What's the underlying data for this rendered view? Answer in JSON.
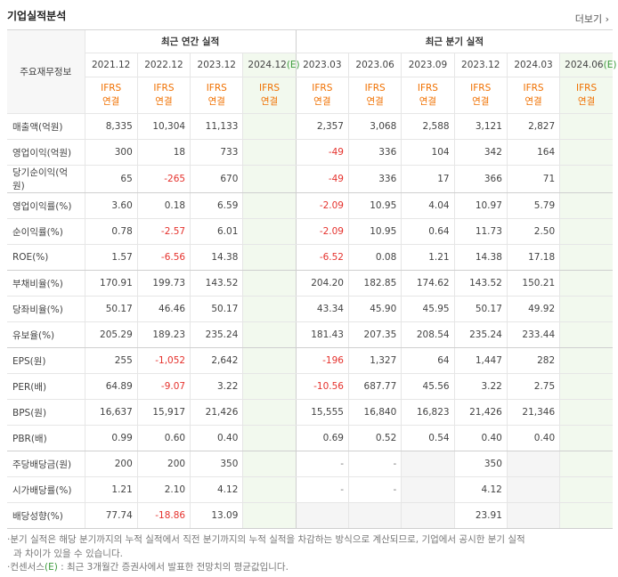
{
  "header": {
    "title": "기업실적분석",
    "more": "더보기"
  },
  "table": {
    "row_header": "주요재무정보",
    "groups": [
      {
        "title": "최근 연간 실적",
        "columns": [
          {
            "period": "2021.12",
            "standard": "IFRS",
            "scope": "연결"
          },
          {
            "period": "2022.12",
            "standard": "IFRS",
            "scope": "연결"
          },
          {
            "period": "2023.12",
            "standard": "IFRS",
            "scope": "연결"
          },
          {
            "period": "2024.12",
            "estimate": "(E)",
            "standard": "IFRS",
            "scope": "연결"
          }
        ]
      },
      {
        "title": "최근 분기 실적",
        "columns": [
          {
            "period": "2023.03",
            "standard": "IFRS",
            "scope": "연결"
          },
          {
            "period": "2023.06",
            "standard": "IFRS",
            "scope": "연결"
          },
          {
            "period": "2023.09",
            "standard": "IFRS",
            "scope": "연결"
          },
          {
            "period": "2023.12",
            "standard": "IFRS",
            "scope": "연결"
          },
          {
            "period": "2024.03",
            "standard": "IFRS",
            "scope": "연결"
          },
          {
            "period": "2024.06",
            "estimate": "(E)",
            "standard": "IFRS",
            "scope": "연결"
          }
        ]
      }
    ],
    "row_groups": [
      [
        {
          "label": "매출액(억원)",
          "values": [
            "8,335",
            "10,304",
            "11,133",
            null,
            "2,357",
            "3,068",
            "2,588",
            "3,121",
            "2,827",
            null
          ]
        },
        {
          "label": "영업이익(억원)",
          "values": [
            "300",
            "18",
            "733",
            null,
            "-49",
            "336",
            "104",
            "342",
            "164",
            null
          ]
        },
        {
          "label": "당기순이익(억원)",
          "values": [
            "65",
            "-265",
            "670",
            null,
            "-49",
            "336",
            "17",
            "366",
            "71",
            null
          ]
        }
      ],
      [
        {
          "label": "영업이익률(%)",
          "values": [
            "3.60",
            "0.18",
            "6.59",
            null,
            "-2.09",
            "10.95",
            "4.04",
            "10.97",
            "5.79",
            null
          ]
        },
        {
          "label": "순이익률(%)",
          "values": [
            "0.78",
            "-2.57",
            "6.01",
            null,
            "-2.09",
            "10.95",
            "0.64",
            "11.73",
            "2.50",
            null
          ]
        },
        {
          "label": "ROE(%)",
          "values": [
            "1.57",
            "-6.56",
            "14.38",
            null,
            "-6.52",
            "0.08",
            "1.21",
            "14.38",
            "17.18",
            null
          ]
        }
      ],
      [
        {
          "label": "부채비율(%)",
          "values": [
            "170.91",
            "199.73",
            "143.52",
            null,
            "204.20",
            "182.85",
            "174.62",
            "143.52",
            "150.21",
            null
          ]
        },
        {
          "label": "당좌비율(%)",
          "values": [
            "50.17",
            "46.46",
            "50.17",
            null,
            "43.34",
            "45.90",
            "45.95",
            "50.17",
            "49.92",
            null
          ]
        },
        {
          "label": "유보율(%)",
          "values": [
            "205.29",
            "189.23",
            "235.24",
            null,
            "181.43",
            "207.35",
            "208.54",
            "235.24",
            "233.44",
            null
          ]
        }
      ],
      [
        {
          "label": "EPS(원)",
          "values": [
            "255",
            "-1,052",
            "2,642",
            null,
            "-196",
            "1,327",
            "64",
            "1,447",
            "282",
            null
          ]
        },
        {
          "label": "PER(배)",
          "values": [
            "64.89",
            "-9.07",
            "3.22",
            null,
            "-10.56",
            "687.77",
            "45.56",
            "3.22",
            "2.75",
            null
          ]
        },
        {
          "label": "BPS(원)",
          "values": [
            "16,637",
            "15,917",
            "21,426",
            null,
            "15,555",
            "16,840",
            "16,823",
            "21,426",
            "21,346",
            null
          ]
        },
        {
          "label": "PBR(배)",
          "values": [
            "0.99",
            "0.60",
            "0.40",
            null,
            "0.69",
            "0.52",
            "0.54",
            "0.40",
            "0.40",
            null
          ]
        }
      ],
      [
        {
          "label": "주당배당금(원)",
          "values": [
            "200",
            "200",
            "350",
            null,
            "-",
            "-",
            null,
            "350",
            null,
            null
          ]
        },
        {
          "label": "시가배당률(%)",
          "values": [
            "1.21",
            "2.10",
            "4.12",
            null,
            "-",
            "-",
            null,
            "4.12",
            null,
            null
          ]
        },
        {
          "label": "배당성향(%)",
          "values": [
            "77.74",
            "-18.86",
            "13.09",
            null,
            null,
            null,
            null,
            "23.91",
            null,
            null
          ]
        }
      ]
    ]
  },
  "notes": [
    "분기 실적은 해당 분기까지의 누적 실적에서 직전 분기까지의 누적 실적을 차감하는 방식으로 계산되므로, 기업에서 공시한 분기 실적과 차이가 있을 수 있습니다.",
    {
      "before": "컨센서스",
      "mark": "(E)",
      "after": " : 최근 3개월간 증권사에서 발표한 전망치의 평균값입니다."
    }
  ]
}
